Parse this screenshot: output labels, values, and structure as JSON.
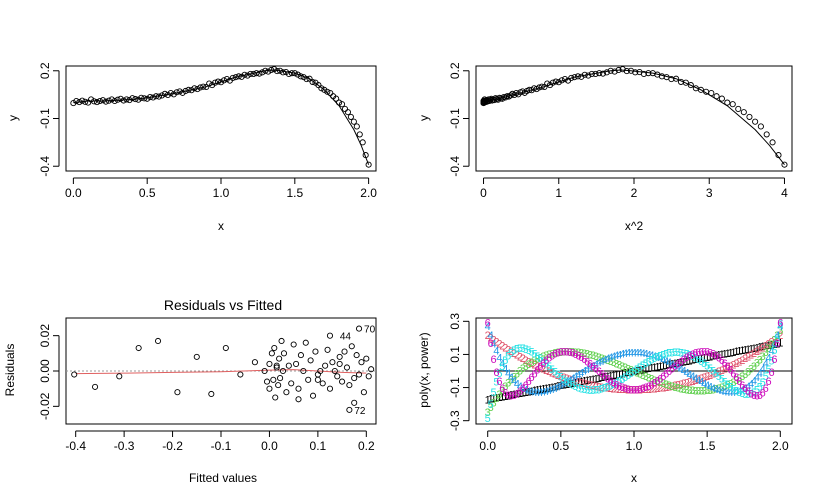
{
  "chart_data": [
    {
      "type": "scatter",
      "title": "",
      "xlabel": "x",
      "ylabel": "y",
      "xlim": [
        -0.05,
        2.05
      ],
      "ylim": [
        -0.43,
        0.23
      ],
      "xticks": [
        0.0,
        0.5,
        1.0,
        1.5,
        2.0
      ],
      "xtick_labels": [
        "0.0",
        "0.5",
        "1.0",
        "1.5",
        "2.0"
      ],
      "yticks": [
        -0.4,
        -0.1,
        0.2
      ],
      "ytick_labels": [
        "-0.4",
        "-0.1",
        "0.2"
      ],
      "marker": "open-circle",
      "point_color": "#000000",
      "line": "smooth-fit",
      "curve": {
        "name": "",
        "x": [
          0.0,
          0.1,
          0.2,
          0.3,
          0.4,
          0.5,
          0.6,
          0.7,
          0.8,
          0.9,
          1.0,
          1.1,
          1.2,
          1.3,
          1.35,
          1.4,
          1.5,
          1.6,
          1.7,
          1.8,
          1.9,
          1.95,
          2.0
        ],
        "y": [
          0.0,
          0.01,
          0.01,
          0.015,
          0.02,
          0.03,
          0.045,
          0.06,
          0.08,
          0.1,
          0.13,
          0.16,
          0.18,
          0.2,
          0.205,
          0.2,
          0.185,
          0.15,
          0.08,
          -0.02,
          -0.17,
          -0.27,
          -0.39
        ]
      },
      "points": {
        "x": [
          0.0,
          0.02,
          0.04,
          0.06,
          0.08,
          0.1,
          0.12,
          0.14,
          0.16,
          0.18,
          0.2,
          0.22,
          0.24,
          0.26,
          0.28,
          0.3,
          0.32,
          0.34,
          0.36,
          0.38,
          0.4,
          0.42,
          0.44,
          0.46,
          0.48,
          0.5,
          0.52,
          0.54,
          0.56,
          0.58,
          0.6,
          0.62,
          0.64,
          0.66,
          0.68,
          0.7,
          0.72,
          0.74,
          0.76,
          0.78,
          0.8,
          0.82,
          0.84,
          0.86,
          0.88,
          0.9,
          0.92,
          0.94,
          0.96,
          0.98,
          1.0,
          1.02,
          1.04,
          1.06,
          1.08,
          1.1,
          1.12,
          1.14,
          1.16,
          1.18,
          1.2,
          1.22,
          1.24,
          1.26,
          1.28,
          1.3,
          1.32,
          1.34,
          1.36,
          1.38,
          1.4,
          1.42,
          1.44,
          1.46,
          1.48,
          1.5,
          1.52,
          1.54,
          1.56,
          1.58,
          1.6,
          1.62,
          1.64,
          1.66,
          1.68,
          1.7,
          1.72,
          1.74,
          1.76,
          1.78,
          1.8,
          1.82,
          1.84,
          1.86,
          1.88,
          1.9,
          1.92,
          1.94,
          1.96,
          1.98,
          2.0
        ],
        "y": [
          -0.003,
          0.01,
          0.003,
          0.012,
          0.005,
          0.0,
          0.02,
          0.008,
          0.003,
          0.01,
          0.015,
          0.006,
          0.012,
          0.02,
          0.01,
          0.018,
          0.024,
          0.013,
          0.02,
          0.016,
          0.028,
          0.022,
          0.018,
          0.03,
          0.027,
          0.024,
          0.035,
          0.032,
          0.04,
          0.038,
          0.045,
          0.055,
          0.048,
          0.06,
          0.052,
          0.065,
          0.07,
          0.061,
          0.073,
          0.08,
          0.078,
          0.09,
          0.085,
          0.095,
          0.1,
          0.098,
          0.12,
          0.11,
          0.125,
          0.132,
          0.128,
          0.14,
          0.148,
          0.138,
          0.155,
          0.16,
          0.165,
          0.162,
          0.175,
          0.17,
          0.18,
          0.18,
          0.185,
          0.182,
          0.19,
          0.2,
          0.195,
          0.205,
          0.21,
          0.198,
          0.2,
          0.19,
          0.192,
          0.18,
          0.185,
          0.185,
          0.176,
          0.165,
          0.16,
          0.148,
          0.15,
          0.13,
          0.125,
          0.11,
          0.09,
          0.08,
          0.068,
          0.06,
          0.04,
          0.025,
          0.0,
          -0.01,
          -0.04,
          -0.06,
          -0.09,
          -0.12,
          -0.15,
          -0.2,
          -0.25,
          -0.33,
          -0.39
        ]
      }
    },
    {
      "type": "scatter",
      "title": "",
      "xlabel": "x^2",
      "ylabel": "y",
      "xlim": [
        -0.1,
        4.1
      ],
      "ylim": [
        -0.43,
        0.23
      ],
      "xticks": [
        0,
        1,
        2,
        3,
        4
      ],
      "xtick_labels": [
        "0",
        "1",
        "2",
        "3",
        "4"
      ],
      "yticks": [
        -0.4,
        -0.1,
        0.2
      ],
      "ytick_labels": [
        "-0.4",
        "-0.1",
        "0.2"
      ],
      "marker": "open-circle",
      "point_color": "#000000",
      "line": "smooth-fit",
      "curve_source": "same (x, y) as panel 1 with x squared",
      "points_source": "same (x, y) as panel 1 with x squared"
    },
    {
      "type": "scatter",
      "title": "Residuals vs Fitted",
      "xlabel": "Fitted values",
      "ylabel": "Residuals",
      "xlim": [
        -0.42,
        0.22
      ],
      "ylim": [
        -0.03,
        0.03
      ],
      "xticks": [
        -0.4,
        -0.3,
        -0.2,
        -0.1,
        0.0,
        0.1,
        0.2
      ],
      "xtick_labels": [
        "-0.4",
        "-0.3",
        "-0.2",
        "-0.1",
        "0.0",
        "0.1",
        "0.2"
      ],
      "yticks": [
        -0.02,
        0.0,
        0.02
      ],
      "ytick_labels": [
        "-0.02",
        "0.00",
        "0.02"
      ],
      "marker": "open-circle",
      "point_color": "#000000",
      "smooth_color": "#e06060",
      "reference_color": "#999999",
      "annotations": [
        {
          "text": "70",
          "x": 0.185,
          "y": 0.024
        },
        {
          "text": "44",
          "x": 0.135,
          "y": 0.02
        },
        {
          "text": "72",
          "x": 0.165,
          "y": -0.022
        }
      ],
      "points": {
        "x": [
          -0.403,
          -0.36,
          -0.31,
          -0.27,
          -0.23,
          -0.19,
          -0.15,
          -0.12,
          -0.09,
          -0.06,
          -0.03,
          -0.01,
          0.0,
          0.005,
          0.008,
          0.01,
          0.012,
          0.015,
          0.018,
          0.02,
          0.022,
          0.025,
          0.028,
          0.03,
          0.035,
          0.04,
          0.045,
          0.05,
          0.055,
          0.06,
          0.065,
          0.07,
          0.075,
          0.08,
          0.085,
          0.09,
          0.095,
          0.1,
          0.105,
          0.11,
          0.115,
          0.12,
          0.125,
          0.13,
          0.135,
          0.14,
          0.145,
          0.15,
          0.155,
          0.16,
          0.165,
          0.17,
          0.175,
          0.18,
          0.185,
          0.19,
          0.195,
          0.2,
          0.205,
          0.21,
          0.185,
          0.165,
          -0.005,
          0.0,
          0.015,
          0.06,
          0.1,
          0.125,
          0.145,
          0.175
        ],
        "y": [
          -0.002,
          -0.009,
          -0.003,
          0.013,
          0.017,
          -0.012,
          0.008,
          -0.013,
          0.013,
          -0.002,
          0.005,
          0.0,
          -0.01,
          0.01,
          -0.005,
          0.013,
          -0.015,
          0.003,
          -0.008,
          0.007,
          -0.004,
          0.017,
          0.0,
          0.01,
          -0.012,
          0.003,
          -0.007,
          0.015,
          0.004,
          -0.01,
          0.009,
          0.0,
          0.016,
          -0.005,
          0.006,
          -0.014,
          0.011,
          -0.002,
          0.0,
          -0.007,
          0.003,
          0.012,
          -0.01,
          0.005,
          0.0,
          -0.003,
          0.008,
          -0.006,
          0.011,
          0.002,
          -0.008,
          0.014,
          -0.004,
          0.009,
          -0.002,
          0.005,
          -0.012,
          0.007,
          -0.003,
          0.001,
          0.024,
          -0.022,
          -0.006,
          0.004,
          0.002,
          -0.016,
          -0.005,
          0.02,
          0.004,
          -0.018
        ]
      },
      "smooth": {
        "x": [
          -0.4,
          -0.3,
          -0.2,
          -0.1,
          0.0,
          0.05,
          0.1,
          0.15,
          0.2
        ],
        "y": [
          -0.0015,
          -0.0012,
          -0.0008,
          -0.0004,
          0.0005,
          0.0008,
          0.0,
          -0.0008,
          -0.0012
        ]
      }
    },
    {
      "type": "line",
      "title": "",
      "xlabel": "x",
      "ylabel": "poly(x, power)",
      "xlim": [
        -0.08,
        2.08
      ],
      "ylim": [
        -0.32,
        0.32
      ],
      "xticks": [
        0.0,
        0.5,
        1.0,
        1.5,
        2.0
      ],
      "xtick_labels": [
        "0.0",
        "0.5",
        "1.0",
        "1.5",
        "2.0"
      ],
      "yticks": [
        -0.3,
        -0.1,
        0.1,
        0.3
      ],
      "ytick_labels": [
        "-0.3",
        "-0.1",
        "0.1",
        "0.3"
      ],
      "reference_line_y": 0,
      "marker": "digit-glyphs",
      "series": [
        {
          "name": "",
          "glyph": "1",
          "color": "#000000",
          "degree": 1
        },
        {
          "name": "",
          "glyph": "2",
          "color": "#df536b",
          "degree": 2
        },
        {
          "name": "",
          "glyph": "3",
          "color": "#61d04f",
          "degree": 3
        },
        {
          "name": "",
          "glyph": "4",
          "color": "#2297e6",
          "degree": 4
        },
        {
          "name": "",
          "glyph": "5",
          "color": "#28e2e5",
          "degree": 5
        },
        {
          "name": "",
          "glyph": "6",
          "color": "#cd0bbc",
          "degree": 6
        }
      ]
    }
  ]
}
